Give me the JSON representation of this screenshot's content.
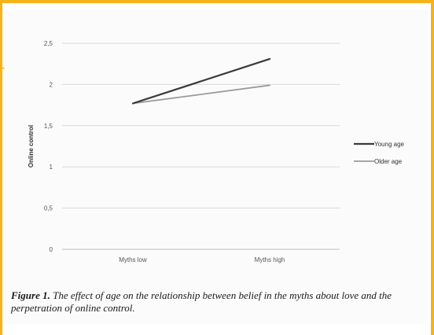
{
  "frame": {
    "accent": "#f5b21b"
  },
  "chart_data": {
    "type": "line",
    "categories": [
      "Myths low",
      "Myths high"
    ],
    "series": [
      {
        "name": "Young age",
        "values": [
          1.77,
          2.31
        ],
        "color": "#3a3a3a"
      },
      {
        "name": "Older age",
        "values": [
          1.77,
          1.99
        ],
        "color": "#9a9a9a"
      }
    ],
    "xlabel": "",
    "ylabel": "Online control",
    "ylim": [
      0,
      2.5
    ],
    "yticks": [
      0,
      0.5,
      1,
      1.5,
      2,
      2.5
    ],
    "ytick_labels": [
      "0",
      "0,5",
      "1",
      "1,5",
      "2",
      "2,5"
    ],
    "grid": true,
    "legend": "right"
  },
  "caption": {
    "label": "Figure 1.",
    "text": "The effect of age on the relationship between belief in the myths about love and the perpetration of online control."
  }
}
